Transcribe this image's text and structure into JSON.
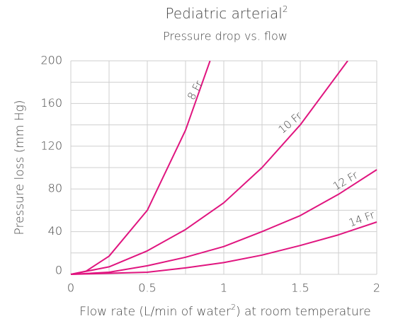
{
  "chart_data": {
    "type": "line",
    "title": [
      "Pediatric arterial",
      "2"
    ],
    "subtitle": "Pressure drop vs. flow",
    "xlabel": [
      "Flow rate (L/min of water",
      "2",
      ") at room temperature"
    ],
    "ylabel": "Pressure loss (mm Hg)",
    "xlim": [
      0,
      2
    ],
    "ylim": [
      0,
      200
    ],
    "xticks": [
      0,
      0.5,
      1,
      1.5,
      2
    ],
    "yticks": [
      0,
      40,
      80,
      120,
      160,
      200
    ],
    "minor_xticks": [
      0.25,
      0.75,
      1.25,
      1.75
    ],
    "minor_yticks": [
      20,
      60,
      100,
      140,
      180
    ],
    "grid": true,
    "series": [
      {
        "name": "8 Fr",
        "color": "#e0157f",
        "x": [
          0,
          0.1,
          0.25,
          0.5,
          0.75,
          0.91
        ],
        "values": [
          0,
          3,
          17,
          60,
          135,
          200
        ]
      },
      {
        "name": "10 Fr",
        "color": "#e0157f",
        "x": [
          0,
          0.25,
          0.5,
          0.75,
          1,
          1.25,
          1.5,
          1.81
        ],
        "values": [
          0,
          7,
          22,
          42,
          67,
          100,
          140,
          200
        ]
      },
      {
        "name": "12 Fr",
        "color": "#e0157f",
        "x": [
          0,
          0.25,
          0.5,
          0.75,
          1,
          1.25,
          1.5,
          1.75,
          2
        ],
        "values": [
          0,
          2,
          8,
          16,
          26,
          40,
          55,
          75,
          98
        ]
      },
      {
        "name": "14 Fr",
        "color": "#e0157f",
        "x": [
          0,
          0.5,
          0.75,
          1,
          1.25,
          1.5,
          1.75,
          2
        ],
        "values": [
          0,
          2,
          6,
          11,
          18,
          27,
          37,
          49
        ]
      }
    ]
  }
}
